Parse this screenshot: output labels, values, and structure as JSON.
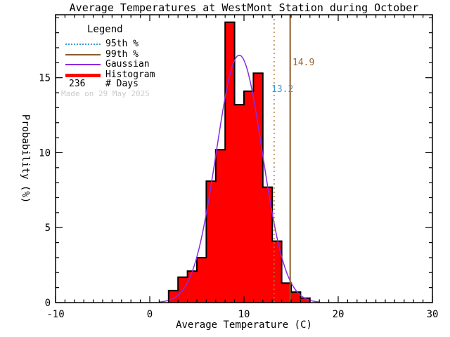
{
  "title": "Average Temperatures at WestMont Station during October",
  "xlabel": "Average Temperature (C)",
  "ylabel": "Probability (%)",
  "legend": {
    "title": "Legend",
    "items": [
      {
        "label": "95th %",
        "style": "dotted",
        "color": "#3A9AD9",
        "name": "percentile-95"
      },
      {
        "label": "99th %",
        "style": "solid",
        "color": "#8C5A28",
        "name": "percentile-99"
      },
      {
        "label": "Gaussian",
        "style": "solid",
        "color": "#8A2BE2",
        "name": "gaussian"
      },
      {
        "label": "Histogram",
        "style": "thick",
        "color": "#FF0000",
        "name": "histogram"
      }
    ],
    "days_count": "236",
    "days_label": "# Days"
  },
  "watermark": "Made on 29 May 2025",
  "chart_data": {
    "type": "bar",
    "subtype": "histogram-with-gaussian-fit",
    "title": "Average Temperatures at WestMont Station during October",
    "xlabel": "Average Temperature (C)",
    "ylabel": "Probability (%)",
    "xlim": [
      -10,
      30
    ],
    "ylim": [
      0,
      19.2
    ],
    "x_major_ticks": [
      -10,
      0,
      10,
      20,
      30
    ],
    "y_major_ticks": [
      0,
      5,
      10,
      15
    ],
    "minor_tick_step_x": 1,
    "minor_tick_step_y": 1,
    "grid": false,
    "legend_position": "top-left-inside",
    "n_days": 236,
    "bins_start": 2,
    "bin_width": 1,
    "bin_left_edges": [
      2,
      3,
      4,
      5,
      6,
      7,
      8,
      9,
      10,
      11,
      12,
      13,
      14,
      15,
      16
    ],
    "bar_values": [
      0.8,
      1.7,
      2.1,
      3.0,
      8.1,
      10.2,
      18.7,
      13.2,
      14.1,
      15.3,
      7.7,
      4.1,
      1.3,
      0.7,
      0.3
    ],
    "bar_color": "#FF0000",
    "bar_outline_color": "#000000",
    "gaussian": {
      "mean": 9.5,
      "sigma": 2.45,
      "amplitude": 16.5,
      "color": "#8A2BE2"
    },
    "percentile_95": {
      "value": 13.2,
      "label": "13.2",
      "line_color": "#B5793B",
      "label_color": "#3A9AD9",
      "line_style": "dotted"
    },
    "percentile_99": {
      "value": 14.9,
      "label": "14.9",
      "line_color": "#8C5A28",
      "label_color": "#996633",
      "line_style": "solid"
    }
  }
}
